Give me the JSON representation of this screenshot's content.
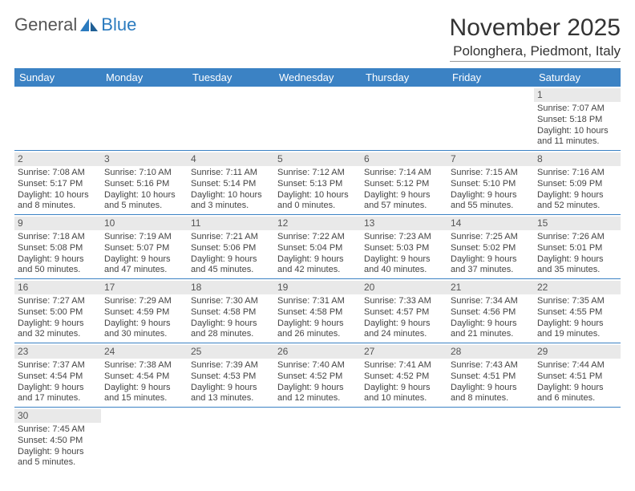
{
  "logo": {
    "text1": "General",
    "text2": "Blue",
    "color1": "#555555",
    "color2": "#2b7bbf",
    "sail_color": "#2b7bbf"
  },
  "title": "November 2025",
  "location": "Polonghera, Piedmont, Italy",
  "header_bg": "#3b82c4",
  "header_fg": "#ffffff",
  "daynum_bg": "#e9e9e9",
  "cell_border": "#3b82c4",
  "day_names": [
    "Sunday",
    "Monday",
    "Tuesday",
    "Wednesday",
    "Thursday",
    "Friday",
    "Saturday"
  ],
  "weeks": [
    [
      {
        "n": "",
        "sr": "",
        "ss": "",
        "d1": "",
        "d2": ""
      },
      {
        "n": "",
        "sr": "",
        "ss": "",
        "d1": "",
        "d2": ""
      },
      {
        "n": "",
        "sr": "",
        "ss": "",
        "d1": "",
        "d2": ""
      },
      {
        "n": "",
        "sr": "",
        "ss": "",
        "d1": "",
        "d2": ""
      },
      {
        "n": "",
        "sr": "",
        "ss": "",
        "d1": "",
        "d2": ""
      },
      {
        "n": "",
        "sr": "",
        "ss": "",
        "d1": "",
        "d2": ""
      },
      {
        "n": "1",
        "sr": "Sunrise: 7:07 AM",
        "ss": "Sunset: 5:18 PM",
        "d1": "Daylight: 10 hours",
        "d2": "and 11 minutes."
      }
    ],
    [
      {
        "n": "2",
        "sr": "Sunrise: 7:08 AM",
        "ss": "Sunset: 5:17 PM",
        "d1": "Daylight: 10 hours",
        "d2": "and 8 minutes."
      },
      {
        "n": "3",
        "sr": "Sunrise: 7:10 AM",
        "ss": "Sunset: 5:16 PM",
        "d1": "Daylight: 10 hours",
        "d2": "and 5 minutes."
      },
      {
        "n": "4",
        "sr": "Sunrise: 7:11 AM",
        "ss": "Sunset: 5:14 PM",
        "d1": "Daylight: 10 hours",
        "d2": "and 3 minutes."
      },
      {
        "n": "5",
        "sr": "Sunrise: 7:12 AM",
        "ss": "Sunset: 5:13 PM",
        "d1": "Daylight: 10 hours",
        "d2": "and 0 minutes."
      },
      {
        "n": "6",
        "sr": "Sunrise: 7:14 AM",
        "ss": "Sunset: 5:12 PM",
        "d1": "Daylight: 9 hours",
        "d2": "and 57 minutes."
      },
      {
        "n": "7",
        "sr": "Sunrise: 7:15 AM",
        "ss": "Sunset: 5:10 PM",
        "d1": "Daylight: 9 hours",
        "d2": "and 55 minutes."
      },
      {
        "n": "8",
        "sr": "Sunrise: 7:16 AM",
        "ss": "Sunset: 5:09 PM",
        "d1": "Daylight: 9 hours",
        "d2": "and 52 minutes."
      }
    ],
    [
      {
        "n": "9",
        "sr": "Sunrise: 7:18 AM",
        "ss": "Sunset: 5:08 PM",
        "d1": "Daylight: 9 hours",
        "d2": "and 50 minutes."
      },
      {
        "n": "10",
        "sr": "Sunrise: 7:19 AM",
        "ss": "Sunset: 5:07 PM",
        "d1": "Daylight: 9 hours",
        "d2": "and 47 minutes."
      },
      {
        "n": "11",
        "sr": "Sunrise: 7:21 AM",
        "ss": "Sunset: 5:06 PM",
        "d1": "Daylight: 9 hours",
        "d2": "and 45 minutes."
      },
      {
        "n": "12",
        "sr": "Sunrise: 7:22 AM",
        "ss": "Sunset: 5:04 PM",
        "d1": "Daylight: 9 hours",
        "d2": "and 42 minutes."
      },
      {
        "n": "13",
        "sr": "Sunrise: 7:23 AM",
        "ss": "Sunset: 5:03 PM",
        "d1": "Daylight: 9 hours",
        "d2": "and 40 minutes."
      },
      {
        "n": "14",
        "sr": "Sunrise: 7:25 AM",
        "ss": "Sunset: 5:02 PM",
        "d1": "Daylight: 9 hours",
        "d2": "and 37 minutes."
      },
      {
        "n": "15",
        "sr": "Sunrise: 7:26 AM",
        "ss": "Sunset: 5:01 PM",
        "d1": "Daylight: 9 hours",
        "d2": "and 35 minutes."
      }
    ],
    [
      {
        "n": "16",
        "sr": "Sunrise: 7:27 AM",
        "ss": "Sunset: 5:00 PM",
        "d1": "Daylight: 9 hours",
        "d2": "and 32 minutes."
      },
      {
        "n": "17",
        "sr": "Sunrise: 7:29 AM",
        "ss": "Sunset: 4:59 PM",
        "d1": "Daylight: 9 hours",
        "d2": "and 30 minutes."
      },
      {
        "n": "18",
        "sr": "Sunrise: 7:30 AM",
        "ss": "Sunset: 4:58 PM",
        "d1": "Daylight: 9 hours",
        "d2": "and 28 minutes."
      },
      {
        "n": "19",
        "sr": "Sunrise: 7:31 AM",
        "ss": "Sunset: 4:58 PM",
        "d1": "Daylight: 9 hours",
        "d2": "and 26 minutes."
      },
      {
        "n": "20",
        "sr": "Sunrise: 7:33 AM",
        "ss": "Sunset: 4:57 PM",
        "d1": "Daylight: 9 hours",
        "d2": "and 24 minutes."
      },
      {
        "n": "21",
        "sr": "Sunrise: 7:34 AM",
        "ss": "Sunset: 4:56 PM",
        "d1": "Daylight: 9 hours",
        "d2": "and 21 minutes."
      },
      {
        "n": "22",
        "sr": "Sunrise: 7:35 AM",
        "ss": "Sunset: 4:55 PM",
        "d1": "Daylight: 9 hours",
        "d2": "and 19 minutes."
      }
    ],
    [
      {
        "n": "23",
        "sr": "Sunrise: 7:37 AM",
        "ss": "Sunset: 4:54 PM",
        "d1": "Daylight: 9 hours",
        "d2": "and 17 minutes."
      },
      {
        "n": "24",
        "sr": "Sunrise: 7:38 AM",
        "ss": "Sunset: 4:54 PM",
        "d1": "Daylight: 9 hours",
        "d2": "and 15 minutes."
      },
      {
        "n": "25",
        "sr": "Sunrise: 7:39 AM",
        "ss": "Sunset: 4:53 PM",
        "d1": "Daylight: 9 hours",
        "d2": "and 13 minutes."
      },
      {
        "n": "26",
        "sr": "Sunrise: 7:40 AM",
        "ss": "Sunset: 4:52 PM",
        "d1": "Daylight: 9 hours",
        "d2": "and 12 minutes."
      },
      {
        "n": "27",
        "sr": "Sunrise: 7:41 AM",
        "ss": "Sunset: 4:52 PM",
        "d1": "Daylight: 9 hours",
        "d2": "and 10 minutes."
      },
      {
        "n": "28",
        "sr": "Sunrise: 7:43 AM",
        "ss": "Sunset: 4:51 PM",
        "d1": "Daylight: 9 hours",
        "d2": "and 8 minutes."
      },
      {
        "n": "29",
        "sr": "Sunrise: 7:44 AM",
        "ss": "Sunset: 4:51 PM",
        "d1": "Daylight: 9 hours",
        "d2": "and 6 minutes."
      }
    ],
    [
      {
        "n": "30",
        "sr": "Sunrise: 7:45 AM",
        "ss": "Sunset: 4:50 PM",
        "d1": "Daylight: 9 hours",
        "d2": "and 5 minutes."
      },
      {
        "n": "",
        "sr": "",
        "ss": "",
        "d1": "",
        "d2": ""
      },
      {
        "n": "",
        "sr": "",
        "ss": "",
        "d1": "",
        "d2": ""
      },
      {
        "n": "",
        "sr": "",
        "ss": "",
        "d1": "",
        "d2": ""
      },
      {
        "n": "",
        "sr": "",
        "ss": "",
        "d1": "",
        "d2": ""
      },
      {
        "n": "",
        "sr": "",
        "ss": "",
        "d1": "",
        "d2": ""
      },
      {
        "n": "",
        "sr": "",
        "ss": "",
        "d1": "",
        "d2": ""
      }
    ]
  ]
}
